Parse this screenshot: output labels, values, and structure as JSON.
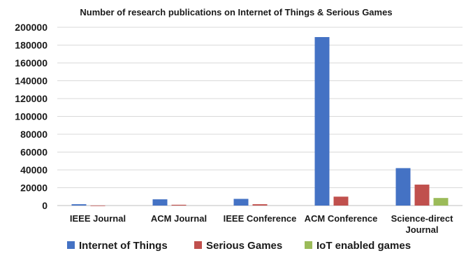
{
  "chart_data": {
    "type": "bar",
    "title": "Number of research publications on Internet of Things & Serious Games",
    "xlabel": "",
    "ylabel": "",
    "ylim": [
      0,
      200000
    ],
    "yticks": [
      0,
      20000,
      40000,
      60000,
      80000,
      100000,
      120000,
      140000,
      160000,
      180000,
      200000
    ],
    "grid": true,
    "legend_position": "bottom",
    "categories": [
      [
        "IEEE Journal"
      ],
      [
        "ACM Journal"
      ],
      [
        "IEEE Conference"
      ],
      [
        "ACM Conference"
      ],
      [
        "Science-direct",
        "Journal"
      ]
    ],
    "series": [
      {
        "name": "Internet of Things",
        "color": "#4472C4",
        "values": [
          1500,
          7000,
          7500,
          189000,
          42000
        ]
      },
      {
        "name": "Serious Games",
        "color": "#C0504D",
        "values": [
          100,
          900,
          1500,
          10000,
          23500
        ]
      },
      {
        "name": "IoT enabled games",
        "color": "#9BBB59",
        "values": [
          0,
          0,
          0,
          0,
          8500
        ]
      }
    ]
  }
}
